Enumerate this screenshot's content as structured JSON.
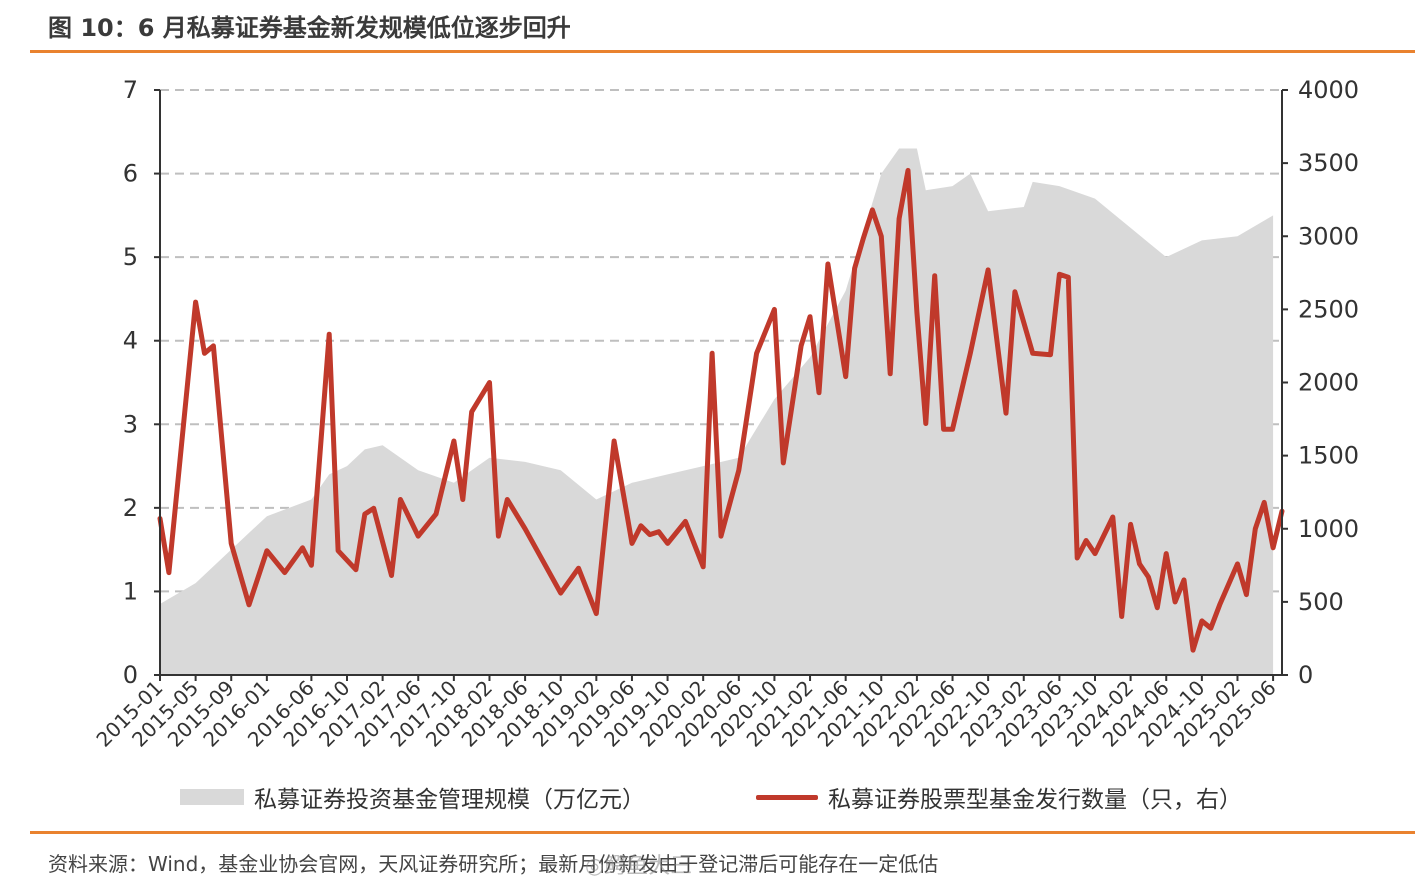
{
  "title": "图 10：6 月私募证券基金新发规模低位逐步回升",
  "footer": "资料来源：Wind，基金业协会官网，天风证券研究所；最新月份新发由于登记滞后可能存在一定低估",
  "watermark": "◎鳄鱼大三",
  "colors": {
    "accent": "#e9822f",
    "area": "#d9d9d9",
    "line": "#c0392b",
    "grid": "#bfbfbf"
  },
  "chart_data": {
    "type": "area+line",
    "x_ticks": [
      "2015-01",
      "2015-05",
      "2015-09",
      "2016-01",
      "2016-06",
      "2016-10",
      "2017-02",
      "2017-06",
      "2017-10",
      "2018-02",
      "2018-06",
      "2018-10",
      "2019-02",
      "2019-06",
      "2019-10",
      "2020-02",
      "2020-06",
      "2020-10",
      "2021-02",
      "2021-06",
      "2021-10",
      "2022-02",
      "2022-06",
      "2022-10",
      "2023-02",
      "2023-06",
      "2023-10",
      "2024-02",
      "2024-06",
      "2024-10",
      "2025-02",
      "2025-06"
    ],
    "y_left_ticks": [
      "0",
      "1",
      "2",
      "3",
      "4",
      "5",
      "6",
      "7"
    ],
    "y_right_ticks": [
      "0",
      "500",
      "1000",
      "1500",
      "2000",
      "2500",
      "3000",
      "3500",
      "4000"
    ],
    "ylim_left": [
      0,
      7
    ],
    "ylim_right": [
      0,
      4000
    ],
    "grid": true,
    "legend_position": "bottom",
    "series": [
      {
        "name": "私募证券投资基金管理规模（万亿元）",
        "kind": "area",
        "axis": "left",
        "points": [
          [
            "2015-01",
            0.85
          ],
          [
            "2015-05",
            1.1
          ],
          [
            "2015-09",
            1.5
          ],
          [
            "2015-11",
            1.7
          ],
          [
            "2016-01",
            1.9
          ],
          [
            "2016-06",
            2.1
          ],
          [
            "2016-08",
            2.4
          ],
          [
            "2016-10",
            2.5
          ],
          [
            "2016-12",
            2.7
          ],
          [
            "2017-02",
            2.75
          ],
          [
            "2017-04",
            2.6
          ],
          [
            "2017-06",
            2.45
          ],
          [
            "2017-10",
            2.3
          ],
          [
            "2018-02",
            2.6
          ],
          [
            "2018-06",
            2.55
          ],
          [
            "2018-10",
            2.45
          ],
          [
            "2019-02",
            2.1
          ],
          [
            "2019-06",
            2.3
          ],
          [
            "2019-10",
            2.4
          ],
          [
            "2020-02",
            2.5
          ],
          [
            "2020-06",
            2.6
          ],
          [
            "2020-10",
            3.3
          ],
          [
            "2021-02",
            3.8
          ],
          [
            "2021-06",
            4.6
          ],
          [
            "2021-10",
            6.0
          ],
          [
            "2021-12",
            6.3
          ],
          [
            "2022-02",
            6.3
          ],
          [
            "2022-03",
            5.8
          ],
          [
            "2022-06",
            5.85
          ],
          [
            "2022-08",
            6.0
          ],
          [
            "2022-10",
            5.55
          ],
          [
            "2023-02",
            5.6
          ],
          [
            "2023-03",
            5.9
          ],
          [
            "2023-06",
            5.85
          ],
          [
            "2023-10",
            5.7
          ],
          [
            "2024-02",
            5.35
          ],
          [
            "2024-06",
            5.0
          ],
          [
            "2024-10",
            5.2
          ],
          [
            "2025-02",
            5.25
          ],
          [
            "2025-06",
            5.5
          ]
        ]
      },
      {
        "name": "私募证券股票型基金发行数量（只，右）",
        "kind": "line",
        "axis": "right",
        "points": [
          [
            "2015-01",
            1070
          ],
          [
            "2015-02",
            700
          ],
          [
            "2015-05",
            2550
          ],
          [
            "2015-06",
            2200
          ],
          [
            "2015-07",
            2250
          ],
          [
            "2015-09",
            900
          ],
          [
            "2015-11",
            480
          ],
          [
            "2016-01",
            850
          ],
          [
            "2016-03",
            700
          ],
          [
            "2016-05",
            870
          ],
          [
            "2016-06",
            750
          ],
          [
            "2016-08",
            2330
          ],
          [
            "2016-09",
            850
          ],
          [
            "2016-11",
            720
          ],
          [
            "2016-12",
            1100
          ],
          [
            "2017-01",
            1140
          ],
          [
            "2017-03",
            680
          ],
          [
            "2017-04",
            1200
          ],
          [
            "2017-06",
            950
          ],
          [
            "2017-08",
            1100
          ],
          [
            "2017-10",
            1600
          ],
          [
            "2017-11",
            1200
          ],
          [
            "2017-12",
            1800
          ],
          [
            "2018-02",
            2000
          ],
          [
            "2018-03",
            950
          ],
          [
            "2018-04",
            1200
          ],
          [
            "2018-06",
            1000
          ],
          [
            "2018-08",
            780
          ],
          [
            "2018-10",
            560
          ],
          [
            "2018-12",
            730
          ],
          [
            "2019-02",
            420
          ],
          [
            "2019-04",
            1600
          ],
          [
            "2019-06",
            900
          ],
          [
            "2019-07",
            1020
          ],
          [
            "2019-08",
            960
          ],
          [
            "2019-09",
            980
          ],
          [
            "2019-10",
            900
          ],
          [
            "2019-12",
            1050
          ],
          [
            "2020-02",
            740
          ],
          [
            "2020-03",
            2200
          ],
          [
            "2020-04",
            950
          ],
          [
            "2020-06",
            1400
          ],
          [
            "2020-08",
            2200
          ],
          [
            "2020-10",
            2500
          ],
          [
            "2020-11",
            1450
          ],
          [
            "2021-01",
            2250
          ],
          [
            "2021-02",
            2450
          ],
          [
            "2021-03",
            1930
          ],
          [
            "2021-04",
            2810
          ],
          [
            "2021-06",
            2040
          ],
          [
            "2021-07",
            2780
          ],
          [
            "2021-08",
            2990
          ],
          [
            "2021-09",
            3180
          ],
          [
            "2021-10",
            3000
          ],
          [
            "2021-11",
            2060
          ],
          [
            "2021-12",
            3120
          ],
          [
            "2022-01",
            3450
          ],
          [
            "2022-02",
            2480
          ],
          [
            "2022-03",
            1720
          ],
          [
            "2022-04",
            2730
          ],
          [
            "2022-05",
            1680
          ],
          [
            "2022-06",
            1680
          ],
          [
            "2022-08",
            2200
          ],
          [
            "2022-10",
            2770
          ],
          [
            "2022-12",
            1790
          ],
          [
            "2023-01",
            2620
          ],
          [
            "2023-03",
            2200
          ],
          [
            "2023-05",
            2190
          ],
          [
            "2023-06",
            2740
          ],
          [
            "2023-07",
            2720
          ],
          [
            "2023-08",
            800
          ],
          [
            "2023-09",
            920
          ],
          [
            "2023-10",
            830
          ],
          [
            "2023-12",
            1080
          ],
          [
            "2024-01",
            400
          ],
          [
            "2024-02",
            1030
          ],
          [
            "2024-03",
            760
          ],
          [
            "2024-04",
            670
          ],
          [
            "2024-05",
            460
          ],
          [
            "2024-06",
            830
          ],
          [
            "2024-07",
            500
          ],
          [
            "2024-08",
            650
          ],
          [
            "2024-09",
            170
          ],
          [
            "2024-10",
            370
          ],
          [
            "2024-11",
            320
          ],
          [
            "2024-12",
            480
          ],
          [
            "2025-02",
            760
          ],
          [
            "2025-03",
            550
          ],
          [
            "2025-04",
            1000
          ],
          [
            "2025-05",
            1180
          ],
          [
            "2025-06",
            870
          ],
          [
            "2025-07",
            1120
          ]
        ]
      }
    ]
  },
  "legend": [
    {
      "label": "私募证券投资基金管理规模（万亿元）"
    },
    {
      "label": "私募证券股票型基金发行数量（只，右）"
    }
  ]
}
